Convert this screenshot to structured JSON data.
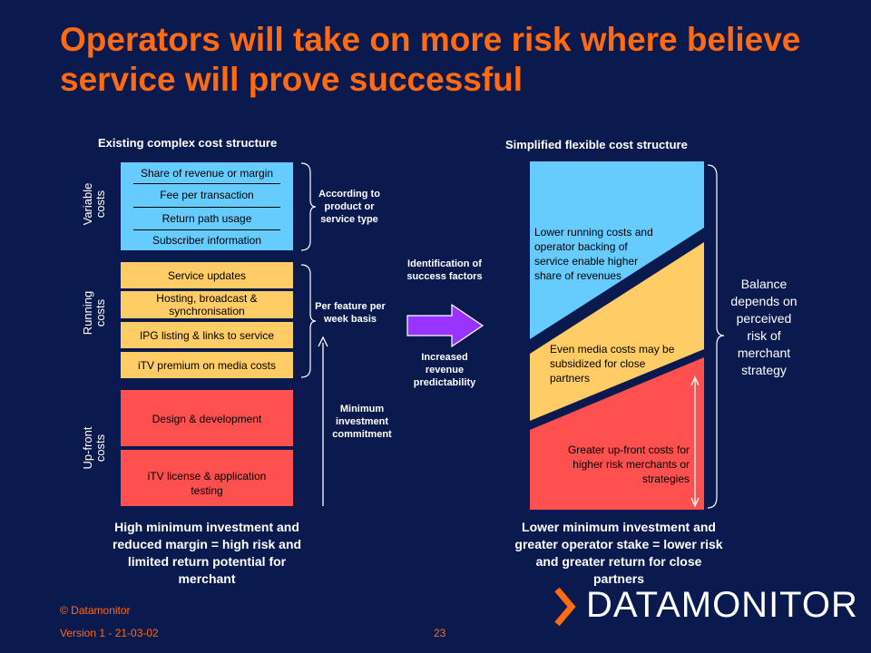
{
  "title": "Operators will take on more risk where believe service will prove successful",
  "left": {
    "header": "Existing complex cost structure",
    "variable": {
      "label_line1": "Variable",
      "label_line2": "costs",
      "items": [
        "Share of revenue or margin",
        "Fee per transaction",
        "Return path usage",
        "Subscriber information"
      ],
      "note": "According to product or service type"
    },
    "running": {
      "label_line1": "Running",
      "label_line2": "costs",
      "items": [
        "Service updates",
        "Hosting, broadcast & synchronisation",
        "IPG listing & links to service",
        "iTV premium on media costs"
      ],
      "note": "Per feature per week basis"
    },
    "upfront": {
      "label_line1": "Up-front",
      "label_line2": "costs",
      "items": [
        "Design & development",
        "iTV license & application testing"
      ],
      "note": "Minimum investment commitment"
    },
    "summary": "High minimum investment and reduced margin = high risk and limited return potential for merchant"
  },
  "middle": {
    "top_note": "Identification of success factors",
    "bottom_note": "Increased revenue predictability"
  },
  "right": {
    "header": "Simplified flexible cost structure",
    "blue_text": "Lower running costs and operator backing of service enable higher share of revenues",
    "yellow_text": "Even media costs may be subsidized for close partners",
    "red_text": "Greater up-front costs for higher risk merchants or strategies",
    "side_note": "Balance depends on perceived risk of merchant strategy",
    "summary": "Lower minimum investment and greater operator stake = lower risk and greater return for close partners"
  },
  "footer": {
    "copyright": "© Datamonitor",
    "version": "Version 1 - 21-03-02",
    "page": "23",
    "logo": "DATAMONITOR"
  },
  "colors": {
    "background": "#0b1a4e",
    "title": "#ff6a13",
    "variable": "#66ccff",
    "running": "#ffcc66",
    "upfront": "#ff5050",
    "arrow": "#9933ff"
  }
}
